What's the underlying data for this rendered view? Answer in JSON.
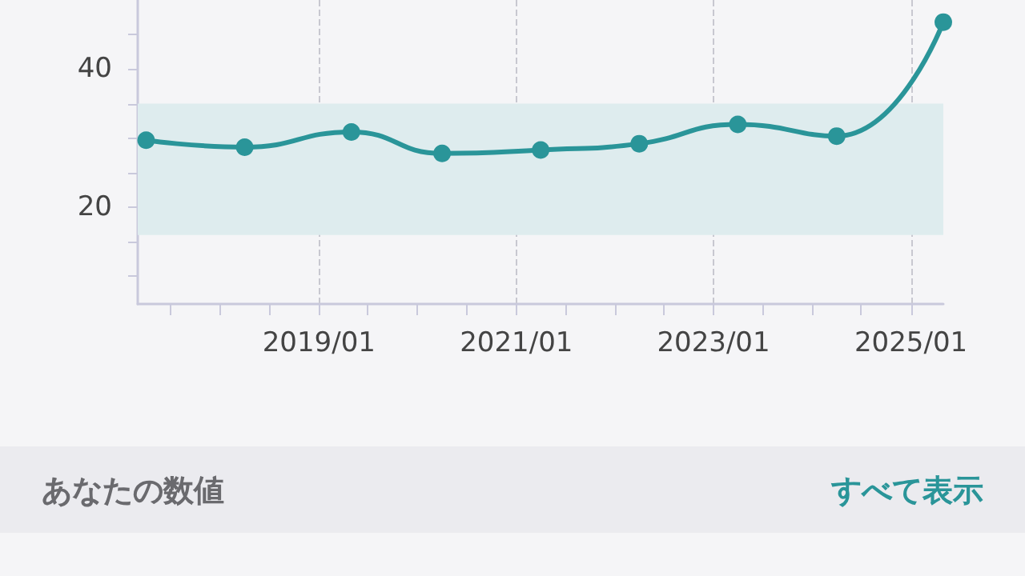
{
  "chart_data": {
    "type": "line",
    "x": [
      "2017-04",
      "2018-04",
      "2019-05",
      "2020-04",
      "2021-04",
      "2022-04",
      "2023-04",
      "2024-04",
      "2025-05"
    ],
    "series": [
      {
        "color": "#2a9599",
        "values": [
          29.7,
          28.7,
          30.9,
          27.8,
          28.3,
          29.2,
          32.0,
          30.3,
          46.8
        ]
      }
    ],
    "xlim": [
      "2017-03",
      "2025-05"
    ],
    "xticks": [
      {
        "value": "2017-07",
        "label": null
      },
      {
        "value": "2018-01",
        "label": null
      },
      {
        "value": "2018-07",
        "label": null
      },
      {
        "value": "2019-01",
        "label": "2019/01"
      },
      {
        "value": "2019-07",
        "label": null
      },
      {
        "value": "2020-01",
        "label": null
      },
      {
        "value": "2020-07",
        "label": null
      },
      {
        "value": "2021-01",
        "label": "2021/01"
      },
      {
        "value": "2021-07",
        "label": null
      },
      {
        "value": "2022-01",
        "label": null
      },
      {
        "value": "2022-07",
        "label": null
      },
      {
        "value": "2023-01",
        "label": "2023/01"
      },
      {
        "value": "2023-07",
        "label": null
      },
      {
        "value": "2024-01",
        "label": null
      },
      {
        "value": "2024-07",
        "label": null
      },
      {
        "value": "2025-01",
        "label": "2025/01"
      }
    ],
    "ylim": [
      6,
      50
    ],
    "yticks": [
      {
        "value": 10,
        "label": null
      },
      {
        "value": 15,
        "label": null
      },
      20,
      {
        "value": 25,
        "label": null
      },
      {
        "value": 30,
        "label": null
      },
      {
        "value": 35,
        "label": null
      },
      40,
      {
        "value": 45,
        "label": null
      }
    ],
    "bands": [
      {
        "axis": "y",
        "from": 16,
        "to": 35,
        "color": "#deecee"
      }
    ],
    "grid": "x",
    "marker": "circle",
    "line_style": "solid",
    "annotations": [
      "あなたの数値",
      "すべて表示"
    ]
  }
}
